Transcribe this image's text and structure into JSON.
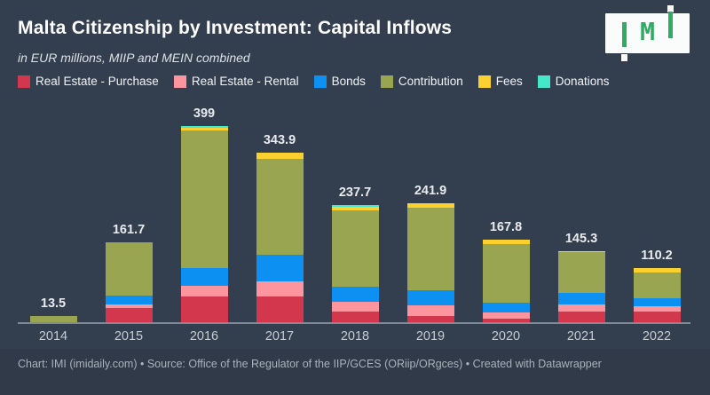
{
  "header": {
    "title": "Malta Citizenship by Investment: Capital Inflows",
    "subtitle": "in EUR millions, MIIP and MEIN combined"
  },
  "logo": {
    "letter": "M"
  },
  "footer": {
    "text": "Chart: IMI (imidaily.com) • Source: Office of the Regulator of the IIP/GCES (ORiip/ORgces) • Created with Datawrapper"
  },
  "colors": {
    "background": "#333e4e",
    "footer_background": "#303a48",
    "axis": "#818a97",
    "logo_green": "#2fab63"
  },
  "chart_data": {
    "type": "bar",
    "stacked": true,
    "title": "Malta Citizenship by Investment: Capital Inflows",
    "subtitle": "in EUR millions, MIIP and MEIN combined",
    "xlabel": "",
    "ylabel": "EUR millions",
    "ylim": [
      0,
      399
    ],
    "grid": false,
    "legend_position": "top",
    "categories": [
      "2014",
      "2015",
      "2016",
      "2017",
      "2018",
      "2019",
      "2020",
      "2021",
      "2022"
    ],
    "totals": [
      13.5,
      161.7,
      399,
      343.9,
      237.7,
      241.9,
      167.8,
      145.3,
      110.2
    ],
    "total_labels": [
      "13.5",
      "161.7",
      "399",
      "343.9",
      "237.7",
      "241.9",
      "167.8",
      "145.3",
      "110.2"
    ],
    "series": [
      {
        "name": "Real Estate - Purchase",
        "color": "#d2374e",
        "values": [
          0,
          29,
          52,
          53,
          21,
          13,
          7,
          22,
          21
        ]
      },
      {
        "name": "Real Estate - Rental",
        "color": "#fc959e",
        "values": [
          0,
          8,
          22,
          30,
          20,
          21,
          13,
          14,
          12
        ]
      },
      {
        "name": "Bonds",
        "color": "#0c90f1",
        "values": [
          0,
          17,
          36,
          54,
          32,
          31,
          20,
          23,
          15
        ]
      },
      {
        "name": "Contribution",
        "color": "#99a551",
        "values": [
          13.5,
          107.7,
          279,
          196,
          154,
          168.4,
          119.3,
          84,
          53.2
        ]
      },
      {
        "name": "Fees",
        "color": "#fcd02f",
        "values": [
          0,
          0,
          6,
          10.9,
          7.5,
          8.5,
          8.5,
          2.3,
          9
        ]
      },
      {
        "name": "Donations",
        "color": "#45e8c8",
        "values": [
          0,
          0,
          4,
          0,
          3.2,
          0,
          0,
          0,
          0
        ]
      }
    ]
  }
}
